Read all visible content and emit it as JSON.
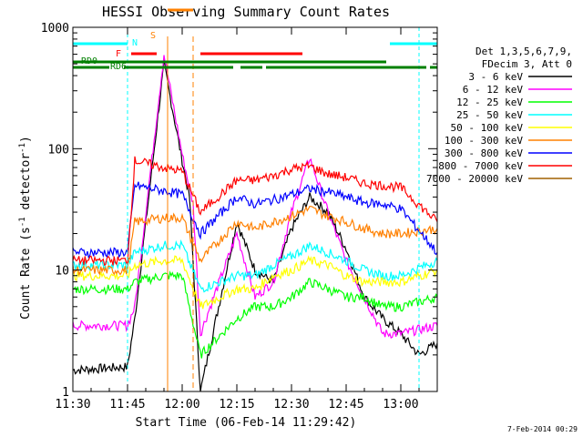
{
  "chart_data": {
    "type": "line",
    "title": "HESSI Observing Summary Count Rates",
    "xlabel": "Start Time (06-Feb-14 11:29:42)",
    "ylabel_main": "Count Rate (s",
    "ylabel_sup": "-1",
    "ylabel_mid": " detector",
    "ylabel_sup2": "-1",
    "ylabel_end": ")",
    "yscale": "log",
    "ylim": [
      1,
      1000
    ],
    "xlim_min": [
      0,
      100
    ],
    "x_ticks": [
      {
        "min": 0,
        "label": "11:30"
      },
      {
        "min": 15,
        "label": "11:45"
      },
      {
        "min": 30,
        "label": "12:00"
      },
      {
        "min": 45,
        "label": "12:15"
      },
      {
        "min": 60,
        "label": "12:30"
      },
      {
        "min": 75,
        "label": "12:45"
      },
      {
        "min": 90,
        "label": "13:00"
      }
    ],
    "y_ticks": [
      {
        "v": 1,
        "label": "1"
      },
      {
        "v": 10,
        "label": "10"
      },
      {
        "v": 100,
        "label": "100"
      },
      {
        "v": 1000,
        "label": "1000"
      }
    ],
    "legend": {
      "header": [
        "Det 1,3,5,6,7,9,",
        "FDecim 3, Att 0"
      ],
      "position": "right"
    },
    "series": [
      {
        "name": "3 - 6 keV",
        "color": "#000000",
        "points": [
          [
            0,
            1.5
          ],
          [
            15,
            1.6
          ],
          [
            17,
            4
          ],
          [
            25,
            500
          ],
          [
            30,
            80
          ],
          [
            32,
            40
          ],
          [
            35,
            1
          ],
          [
            45,
            25
          ],
          [
            50,
            10
          ],
          [
            55,
            8
          ],
          [
            60,
            22
          ],
          [
            65,
            40
          ],
          [
            70,
            30
          ],
          [
            75,
            15
          ],
          [
            80,
            6
          ],
          [
            85,
            4
          ],
          [
            90,
            3
          ],
          [
            95,
            2
          ],
          [
            100,
            2.5
          ]
        ]
      },
      {
        "name": "6 - 12 keV",
        "color": "#ff00ff",
        "points": [
          [
            0,
            3.5
          ],
          [
            15,
            3.5
          ],
          [
            17,
            5
          ],
          [
            25,
            600
          ],
          [
            30,
            90
          ],
          [
            33,
            35
          ],
          [
            35,
            3
          ],
          [
            45,
            20
          ],
          [
            50,
            6
          ],
          [
            55,
            8
          ],
          [
            60,
            30
          ],
          [
            65,
            85
          ],
          [
            70,
            30
          ],
          [
            75,
            12
          ],
          [
            80,
            6
          ],
          [
            85,
            3
          ],
          [
            90,
            3
          ],
          [
            100,
            3.5
          ]
        ]
      },
      {
        "name": "12 - 25 keV",
        "color": "#00ff00",
        "points": [
          [
            0,
            7
          ],
          [
            15,
            7
          ],
          [
            17,
            8
          ],
          [
            25,
            9
          ],
          [
            30,
            9
          ],
          [
            35,
            2
          ],
          [
            45,
            4
          ],
          [
            50,
            5
          ],
          [
            55,
            5
          ],
          [
            60,
            6
          ],
          [
            65,
            8
          ],
          [
            70,
            7
          ],
          [
            75,
            6
          ],
          [
            80,
            6
          ],
          [
            85,
            5
          ],
          [
            90,
            5
          ],
          [
            100,
            6
          ]
        ]
      },
      {
        "name": "25 - 50 keV",
        "color": "#00ffff",
        "points": [
          [
            0,
            11
          ],
          [
            15,
            11
          ],
          [
            17,
            14
          ],
          [
            25,
            16
          ],
          [
            30,
            16
          ],
          [
            35,
            7
          ],
          [
            45,
            9
          ],
          [
            50,
            9
          ],
          [
            55,
            11
          ],
          [
            60,
            13
          ],
          [
            65,
            16
          ],
          [
            70,
            14
          ],
          [
            75,
            12
          ],
          [
            80,
            10
          ],
          [
            85,
            9
          ],
          [
            90,
            9
          ],
          [
            100,
            12
          ]
        ]
      },
      {
        "name": "50 - 100 keV",
        "color": "#ffff00",
        "points": [
          [
            0,
            9
          ],
          [
            15,
            9
          ],
          [
            17,
            11
          ],
          [
            25,
            12
          ],
          [
            30,
            12
          ],
          [
            35,
            5
          ],
          [
            45,
            7
          ],
          [
            50,
            7
          ],
          [
            55,
            9
          ],
          [
            60,
            10
          ],
          [
            65,
            12
          ],
          [
            70,
            11
          ],
          [
            75,
            9
          ],
          [
            80,
            8
          ],
          [
            85,
            8
          ],
          [
            90,
            8
          ],
          [
            100,
            10
          ]
        ]
      },
      {
        "name": "100 - 300 keV",
        "color": "#ff8000",
        "points": [
          [
            0,
            10
          ],
          [
            15,
            10
          ],
          [
            17,
            25
          ],
          [
            25,
            27
          ],
          [
            30,
            27
          ],
          [
            35,
            12
          ],
          [
            45,
            25
          ],
          [
            50,
            22
          ],
          [
            55,
            25
          ],
          [
            60,
            28
          ],
          [
            65,
            32
          ],
          [
            70,
            28
          ],
          [
            75,
            25
          ],
          [
            80,
            22
          ],
          [
            85,
            20
          ],
          [
            90,
            20
          ],
          [
            100,
            22
          ]
        ]
      },
      {
        "name": "300 - 800 keV",
        "color": "#0000ff",
        "points": [
          [
            0,
            14
          ],
          [
            15,
            14
          ],
          [
            17,
            50
          ],
          [
            25,
            45
          ],
          [
            30,
            42
          ],
          [
            35,
            20
          ],
          [
            45,
            40
          ],
          [
            50,
            35
          ],
          [
            55,
            38
          ],
          [
            60,
            42
          ],
          [
            65,
            47
          ],
          [
            70,
            44
          ],
          [
            75,
            40
          ],
          [
            80,
            36
          ],
          [
            85,
            35
          ],
          [
            90,
            32
          ],
          [
            100,
            14
          ]
        ]
      },
      {
        "name": "800 - 7000 keV",
        "color": "#ff0000",
        "points": [
          [
            0,
            12
          ],
          [
            15,
            12
          ],
          [
            17,
            80
          ],
          [
            25,
            70
          ],
          [
            30,
            65
          ],
          [
            35,
            30
          ],
          [
            45,
            55
          ],
          [
            50,
            55
          ],
          [
            55,
            60
          ],
          [
            60,
            68
          ],
          [
            65,
            72
          ],
          [
            70,
            62
          ],
          [
            75,
            58
          ],
          [
            80,
            52
          ],
          [
            85,
            50
          ],
          [
            90,
            48
          ],
          [
            100,
            25
          ]
        ]
      },
      {
        "name": "7000 - 20000 keV",
        "color": "#a06000",
        "points": []
      }
    ],
    "flags": [
      {
        "label": "N",
        "color": "#00ffff",
        "segments": [
          [
            0,
            15
          ],
          [
            87,
            100
          ]
        ]
      },
      {
        "label": "S",
        "color": "#ff8000",
        "segments": [
          [
            26,
            33
          ]
        ]
      },
      {
        "label": "F",
        "color": "#ff0000",
        "segments": [
          [
            16,
            23
          ],
          [
            35,
            63
          ]
        ]
      },
      {
        "label": "RD0",
        "color": "#008000",
        "segments": [
          [
            0,
            86
          ]
        ]
      },
      {
        "label": "RD6",
        "color": "#008000",
        "segments": [
          [
            0,
            10
          ],
          [
            14,
            44
          ],
          [
            46,
            52
          ],
          [
            53,
            97
          ],
          [
            98,
            100
          ]
        ]
      }
    ],
    "footer": "7-Feb-2014 00:29"
  }
}
